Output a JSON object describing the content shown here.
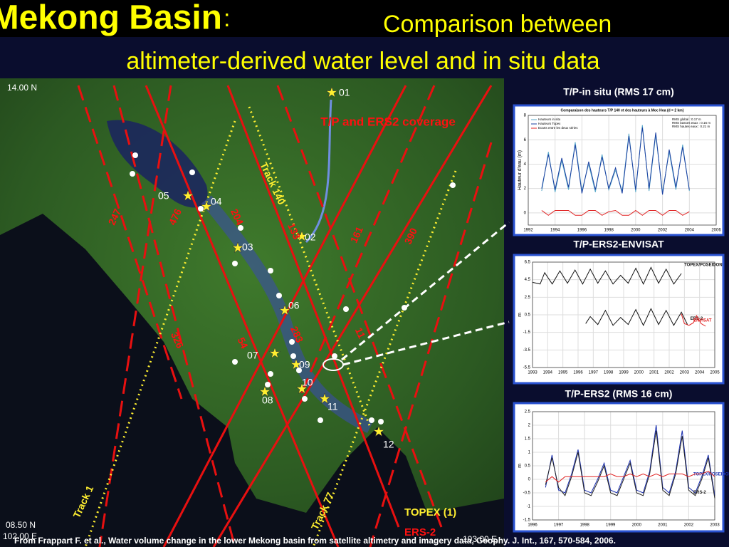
{
  "header": {
    "title": "Mekong Basin",
    "colon": ":",
    "subtitle_1": "Comparison between",
    "subtitle_2": "altimeter-derived water level and in situ data"
  },
  "map": {
    "lat_top": "14.00 N",
    "lat_bottom": "08.50 N",
    "lon_left": "102.00 E",
    "lon_right": "103.00 E",
    "coverage_title": "T/P and ERS2 coverage",
    "stations": [
      "01",
      "02",
      "03",
      "04",
      "05",
      "06",
      "07",
      "08",
      "09",
      "10",
      "11",
      "12"
    ],
    "tracks": [
      "Track 140",
      "Track 1",
      "Track 77",
      "247",
      "476",
      "204",
      "133",
      "161",
      "390",
      "326",
      "54",
      "283",
      "11"
    ],
    "legend": [
      "TOPEX (1)",
      "ERS-2"
    ]
  },
  "panels": [
    "T/P-in situ (RMS 17 cm)",
    "T/P-ERS2-ENVISAT",
    "T/P-ERS2 (RMS 16 cm)"
  ],
  "chart_data": [
    {
      "type": "line",
      "title": "Comparaison des hauteurs T/P 140 et des hauteurs à Moc Hoa (d = 2 km)",
      "ylabel": "Hauteur d'eau (m)",
      "annotations": [
        "RMS global : 0.17 m",
        "RMS basses eaux : 0.16 m",
        "RMS hautes eaux : 0.21 m"
      ],
      "xlim": [
        1992,
        2006
      ],
      "xticks": [
        1992,
        1994,
        1996,
        1998,
        2000,
        2002,
        2004,
        2006
      ],
      "ylim": [
        -1,
        8
      ],
      "yticks": [
        0,
        2,
        4,
        6,
        8
      ],
      "grid": true,
      "series": [
        {
          "name": "Hauteurs in situ",
          "color": "#5aa9c9",
          "x": [
            1993,
            1993.5,
            1994,
            1994.5,
            1995,
            1995.5,
            1996,
            1996.5,
            1997,
            1997.5,
            1998,
            1998.5,
            1999,
            1999.5,
            2000,
            2000.5,
            2001,
            2001.5,
            2002,
            2002.5,
            2003,
            2003.5,
            2004
          ],
          "values": [
            1.8,
            5.0,
            1.7,
            4.3,
            1.9,
            5.8,
            1.8,
            4.0,
            1.7,
            4.8,
            1.9,
            3.5,
            1.8,
            6.5,
            1.7,
            7.2,
            1.8,
            6.4,
            1.7,
            5.0,
            1.9,
            5.6,
            1.8
          ]
        },
        {
          "name": "Hauteurs Topex",
          "color": "#1a3fa0",
          "x": [
            1993,
            1993.5,
            1994,
            1994.5,
            1995,
            1995.5,
            1996,
            1996.5,
            1997,
            1997.5,
            1998,
            1998.5,
            1999,
            1999.5,
            2000,
            2000.5,
            2001,
            2001.5,
            2002,
            2002.5,
            2003,
            2003.5,
            2004
          ],
          "values": [
            2.0,
            4.8,
            1.9,
            4.5,
            2.1,
            5.6,
            1.6,
            4.2,
            1.9,
            4.6,
            2.0,
            3.7,
            1.6,
            6.3,
            1.9,
            7.0,
            2.0,
            6.6,
            1.5,
            5.2,
            2.1,
            5.4,
            1.9
          ]
        },
        {
          "name": "Ecarts entre les deux séries",
          "color": "#e02020",
          "x": [
            1993,
            1993.5,
            1994,
            1994.5,
            1995,
            1995.5,
            1996,
            1996.5,
            1997,
            1997.5,
            1998,
            1998.5,
            1999,
            1999.5,
            2000,
            2000.5,
            2001,
            2001.5,
            2002,
            2002.5,
            2003,
            2003.5,
            2004
          ],
          "values": [
            0.2,
            -0.2,
            0.2,
            0.2,
            0.2,
            -0.2,
            -0.2,
            0.2,
            0.2,
            -0.2,
            0.1,
            0.2,
            -0.2,
            -0.2,
            0.2,
            -0.2,
            0.2,
            0.2,
            -0.2,
            0.2,
            0.2,
            -0.2,
            0.1
          ]
        }
      ]
    },
    {
      "type": "line",
      "ylabel": "m",
      "xlim": [
        1993,
        2005
      ],
      "xticks": [
        1993,
        1994,
        1995,
        1996,
        1997,
        1998,
        1999,
        2000,
        2001,
        2002,
        2003,
        2004,
        2005
      ],
      "ylim": [
        -5.5,
        6.5
      ],
      "yticks": [
        -5.5,
        -3.5,
        -1.5,
        0.5,
        2.5,
        4.5,
        6.5
      ],
      "grid": true,
      "series": [
        {
          "name": "TOPEX/POSEIDON",
          "color": "#111111",
          "x": [
            1993,
            1993.5,
            1993.8,
            1994.3,
            1994.8,
            1995.3,
            1995.8,
            1996.3,
            1996.8,
            1997.3,
            1997.8,
            1998.3,
            1998.8,
            1999.3,
            1999.8,
            2000.3,
            2000.8,
            2001.3,
            2001.8,
            2002.3,
            2002.8
          ],
          "values": [
            4.2,
            4.0,
            5.3,
            4.0,
            5.5,
            4.1,
            5.6,
            4.0,
            5.7,
            4.1,
            5.5,
            4.0,
            5.0,
            4.1,
            5.8,
            4.0,
            5.9,
            4.1,
            5.7,
            4.0,
            5.2
          ]
        },
        {
          "name": "ERS-2",
          "color": "#111111",
          "x": [
            1996.5,
            1996.8,
            1997.3,
            1997.8,
            1998.3,
            1998.8,
            1999.3,
            1999.8,
            2000.3,
            2000.8,
            2001.3,
            2001.8,
            2002.3,
            2002.8,
            2003.2
          ],
          "values": [
            -0.5,
            0.3,
            -0.6,
            1.0,
            -0.7,
            0.2,
            -0.6,
            1.1,
            -0.7,
            1.2,
            -0.6,
            1.0,
            -0.7,
            0.8,
            -0.6
          ]
        },
        {
          "name": "ENVISAT",
          "color": "#e02020",
          "x": [
            2002.8,
            2003.0,
            2003.3,
            2003.6,
            2003.8,
            2004.1,
            2004.4
          ],
          "values": [
            0.6,
            -0.5,
            -0.7,
            -0.4,
            0.4,
            -0.5,
            -0.8
          ]
        }
      ]
    },
    {
      "type": "line",
      "ylabel": "m",
      "xlim": [
        1996,
        2003
      ],
      "xticks": [
        1996,
        1997,
        1998,
        1999,
        2000,
        2001,
        2002,
        2003
      ],
      "ylim": [
        -1.5,
        2.5
      ],
      "yticks": [
        -1.5,
        -1,
        -0.5,
        0,
        0.5,
        1,
        1.5,
        2,
        2.5
      ],
      "grid": true,
      "series": [
        {
          "name": "TOPEX/POSEIDON",
          "color": "#1a2fb0",
          "x": [
            1996.5,
            1996.75,
            1997,
            1997.25,
            1997.5,
            1997.75,
            1998,
            1998.25,
            1998.5,
            1998.75,
            1999,
            1999.25,
            1999.5,
            1999.75,
            2000,
            2000.25,
            2000.5,
            2000.75,
            2001,
            2001.25,
            2001.5,
            2001.75,
            2002,
            2002.25,
            2002.5,
            2002.75,
            2003
          ],
          "values": [
            -0.3,
            0.9,
            -0.4,
            -0.5,
            0.2,
            1.1,
            -0.4,
            -0.5,
            0.0,
            0.6,
            -0.4,
            -0.5,
            0.1,
            0.7,
            -0.4,
            -0.5,
            0.3,
            2.0,
            -0.3,
            -0.5,
            0.3,
            1.8,
            -0.3,
            -0.5,
            0.1,
            0.9,
            -0.6
          ]
        },
        {
          "name": "ERS-2",
          "color": "#222222",
          "x": [
            1996.5,
            1996.75,
            1997,
            1997.25,
            1997.5,
            1997.75,
            1998,
            1998.25,
            1998.5,
            1998.75,
            1999,
            1999.25,
            1999.5,
            1999.75,
            2000,
            2000.25,
            2000.5,
            2000.75,
            2001,
            2001.25,
            2001.5,
            2001.75,
            2002,
            2002.25,
            2002.5,
            2002.75,
            2003
          ],
          "values": [
            -0.2,
            0.8,
            -0.3,
            -0.6,
            0.1,
            1.0,
            -0.5,
            -0.6,
            -0.1,
            0.5,
            -0.5,
            -0.6,
            0.0,
            0.6,
            -0.5,
            -0.6,
            0.2,
            1.8,
            -0.4,
            -0.6,
            0.2,
            1.6,
            -0.4,
            -0.6,
            0.0,
            0.8,
            -0.7
          ]
        },
        {
          "color": "#e02020",
          "x": [
            1996.5,
            1996.75,
            1997,
            1997.25,
            1997.5,
            1997.75,
            1998,
            1998.25,
            1998.5,
            1998.75,
            1999,
            1999.25,
            1999.5,
            1999.75,
            2000,
            2000.25,
            2000.5,
            2000.75,
            2001,
            2001.25,
            2001.5,
            2001.75,
            2002,
            2002.25,
            2002.5,
            2002.75,
            2003
          ],
          "values": [
            -0.1,
            0.1,
            -0.1,
            0.1,
            0.1,
            0.1,
            0.1,
            0.1,
            0.1,
            0.1,
            0.2,
            0.1,
            0.1,
            0.2,
            0.1,
            0.2,
            0.1,
            0.2,
            0.1,
            0.2,
            0.2,
            0.2,
            0.1,
            0.2,
            0.2,
            0.3,
            0.1
          ]
        }
      ]
    }
  ],
  "footer": "From Frappart F. et al., Water volume change in the lower Mekong basin from satellite altimetry and imagery data, Geophy. J. Int., 167, 570-584, 2006."
}
